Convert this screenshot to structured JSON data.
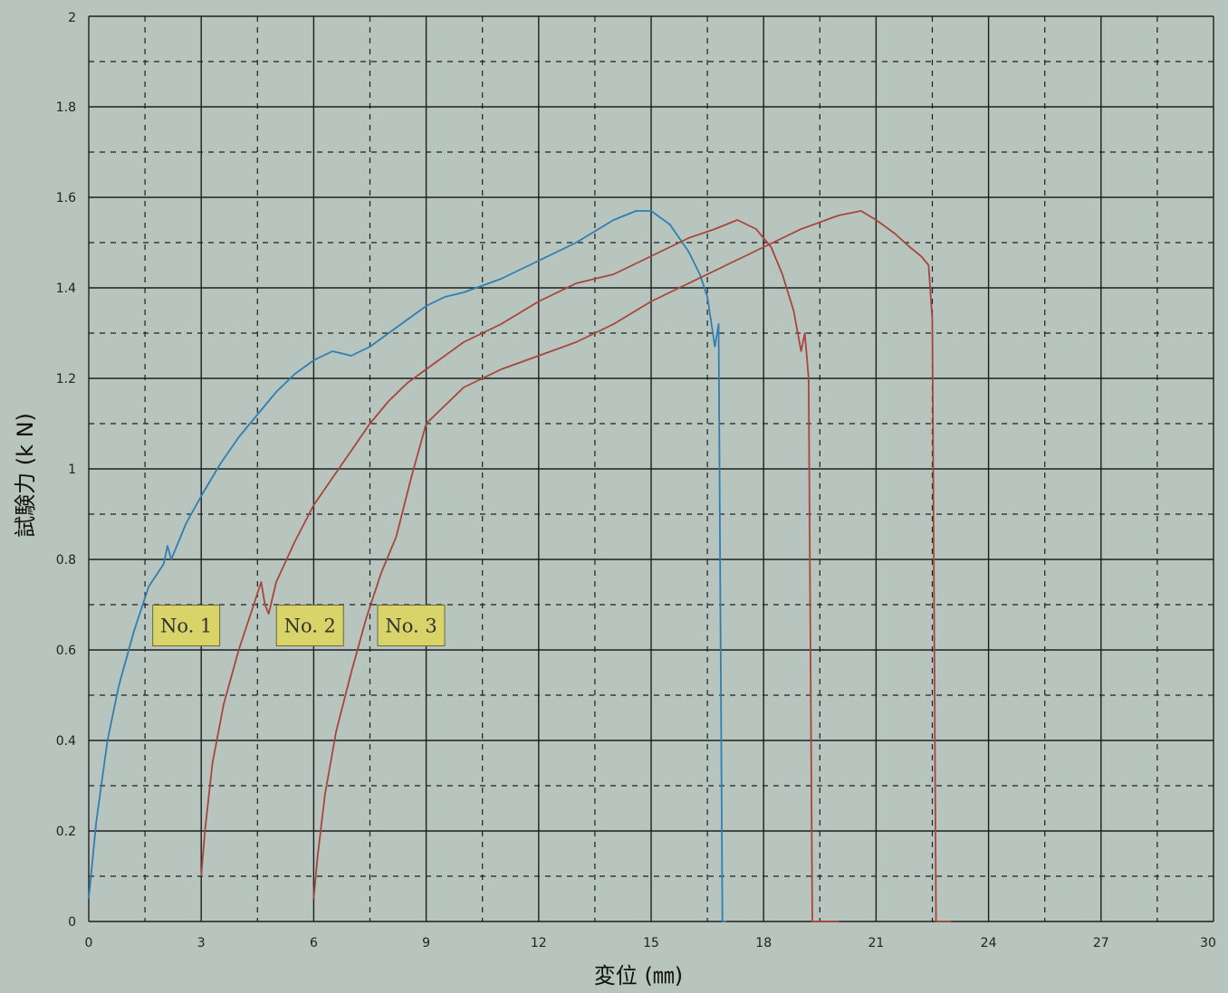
{
  "chart_data": {
    "type": "line",
    "title": "",
    "xlabel": "変位 (㎜)",
    "ylabel": "試験力 (k N)",
    "xlim": [
      0,
      30
    ],
    "ylim": [
      0,
      2
    ],
    "x_ticks": [
      "0",
      "3",
      "6",
      "9",
      "12",
      "15",
      "18",
      "21",
      "24",
      "27",
      "30"
    ],
    "y_ticks": [
      "0",
      "0.2",
      "0.4",
      "0.6",
      "0.8",
      "1",
      "1.2",
      "1.4",
      "1.6",
      "1.8",
      "2"
    ],
    "grid": true,
    "legend": "inline labels",
    "colors": {
      "background": "#b8c4be",
      "grid_major": "#1e1e1e",
      "label_box": "#d9d46a",
      "series_1": "#2f7fb3",
      "series_2": "#a8453c",
      "series_3": "#a8453c"
    },
    "series": [
      {
        "name": "No. 1",
        "x": [
          0,
          0.2,
          0.5,
          0.8,
          1.2,
          1.6,
          2.0,
          2.1,
          2.2,
          2.6,
          3.0,
          3.5,
          4.0,
          4.5,
          5.0,
          5.5,
          6.0,
          6.5,
          7.0,
          7.5,
          8.0,
          8.5,
          9.0,
          9.5,
          10.0,
          11.0,
          12.0,
          13.0,
          14.0,
          14.6,
          15.0,
          15.5,
          16.0,
          16.3,
          16.5,
          16.7,
          16.8,
          16.9,
          17.0
        ],
        "y": [
          0.05,
          0.22,
          0.4,
          0.52,
          0.64,
          0.74,
          0.79,
          0.83,
          0.8,
          0.88,
          0.94,
          1.01,
          1.07,
          1.12,
          1.17,
          1.21,
          1.24,
          1.26,
          1.25,
          1.27,
          1.3,
          1.33,
          1.36,
          1.38,
          1.39,
          1.42,
          1.46,
          1.5,
          1.55,
          1.57,
          1.57,
          1.54,
          1.48,
          1.43,
          1.38,
          1.27,
          1.32,
          0.0,
          0.0
        ]
      },
      {
        "name": "No. 2",
        "x": [
          3.0,
          3.1,
          3.3,
          3.6,
          4.0,
          4.4,
          4.6,
          4.7,
          4.8,
          5.0,
          5.5,
          6.0,
          6.5,
          7.0,
          7.5,
          8.0,
          8.5,
          9.0,
          10.0,
          11.0,
          12.0,
          13.0,
          14.0,
          15.0,
          16.0,
          16.7,
          17.3,
          17.8,
          18.2,
          18.5,
          18.8,
          19.0,
          19.1,
          19.2,
          19.3,
          19.4,
          19.5,
          20.0
        ],
        "y": [
          0.1,
          0.2,
          0.35,
          0.48,
          0.6,
          0.7,
          0.75,
          0.7,
          0.68,
          0.75,
          0.84,
          0.92,
          0.98,
          1.04,
          1.1,
          1.15,
          1.19,
          1.22,
          1.28,
          1.32,
          1.37,
          1.41,
          1.43,
          1.47,
          1.51,
          1.53,
          1.55,
          1.53,
          1.49,
          1.43,
          1.35,
          1.26,
          1.3,
          1.2,
          0.0,
          0.0,
          0.0,
          0.0
        ]
      },
      {
        "name": "No. 3",
        "x": [
          6.0,
          6.1,
          6.3,
          6.6,
          7.0,
          7.4,
          7.8,
          8.2,
          8.6,
          9.0,
          9.5,
          10.0,
          10.5,
          11.0,
          12.0,
          13.0,
          14.0,
          15.0,
          16.0,
          17.0,
          18.0,
          19.0,
          20.0,
          20.6,
          21.0,
          21.5,
          21.9,
          22.2,
          22.4,
          22.5,
          22.6,
          22.7,
          22.8,
          23.0
        ],
        "y": [
          0.05,
          0.14,
          0.28,
          0.42,
          0.55,
          0.67,
          0.77,
          0.85,
          0.98,
          1.1,
          1.14,
          1.18,
          1.2,
          1.22,
          1.25,
          1.28,
          1.32,
          1.37,
          1.41,
          1.45,
          1.49,
          1.53,
          1.56,
          1.57,
          1.55,
          1.52,
          1.49,
          1.47,
          1.45,
          1.33,
          0.0,
          0.0,
          0.0,
          0.0
        ]
      }
    ]
  }
}
